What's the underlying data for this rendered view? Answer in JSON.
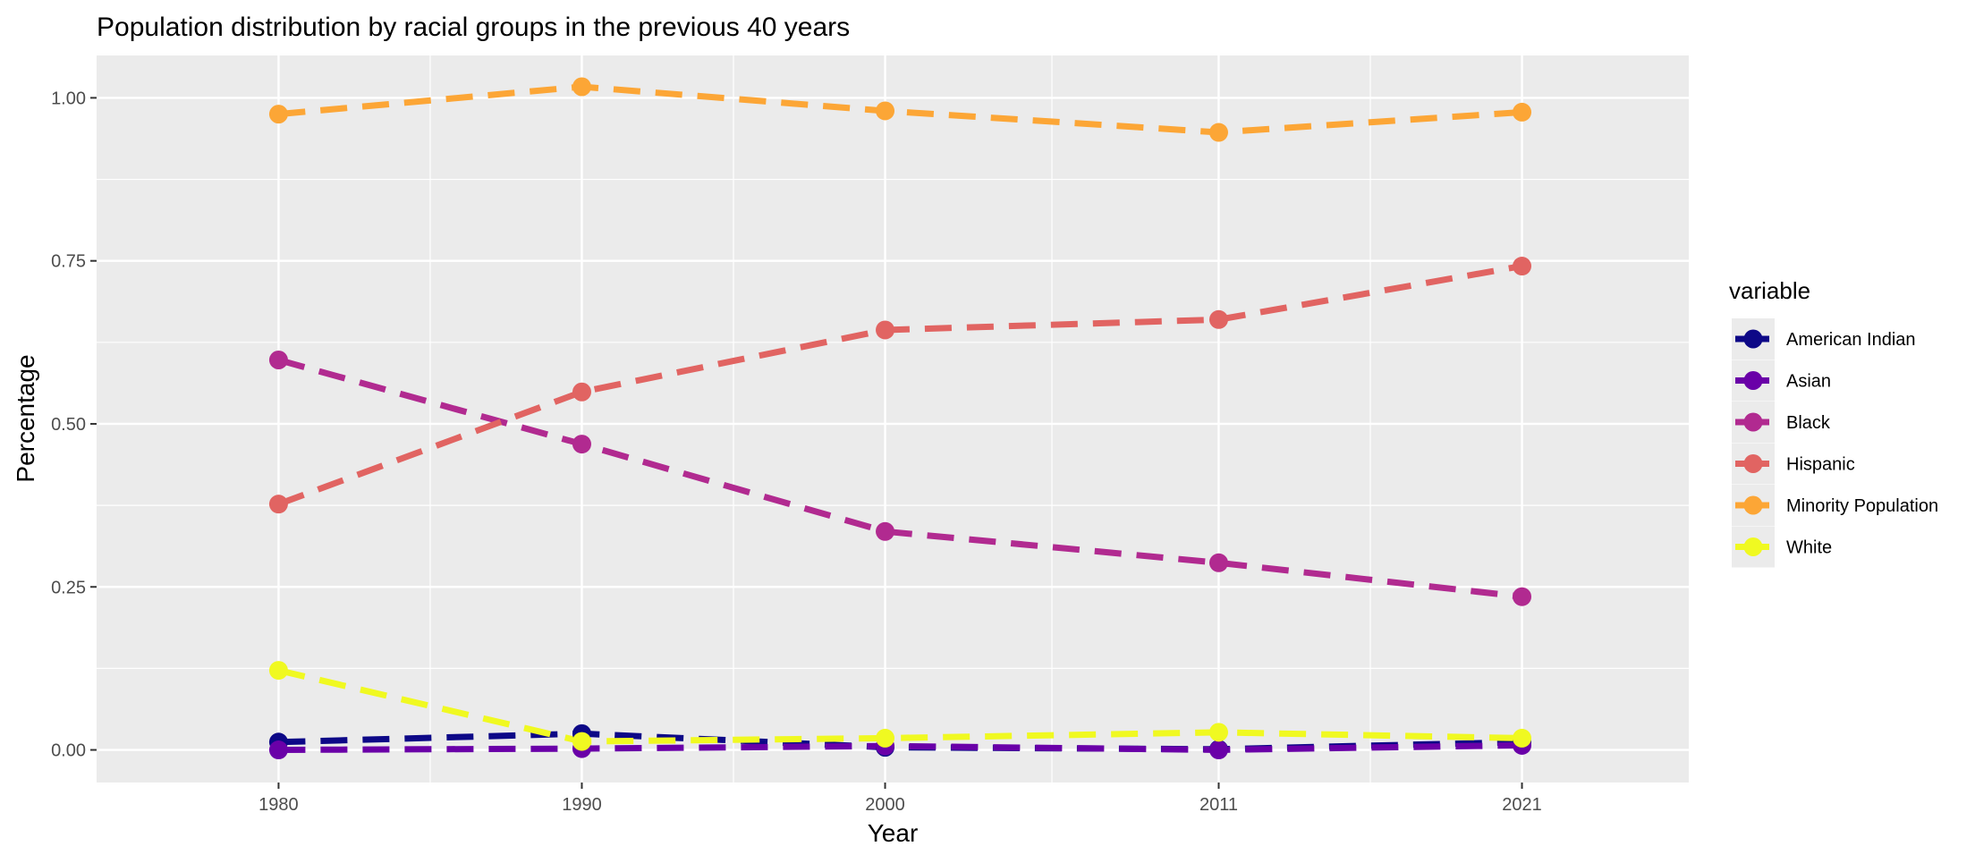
{
  "chart_data": {
    "type": "line",
    "title": "Population distribution by racial groups in the previous 40 years",
    "xlabel": "Year",
    "ylabel": "Percentage",
    "x": [
      "1980",
      "1990",
      "2000",
      "2011",
      "2021"
    ],
    "xlim": [
      1974,
      2026.5
    ],
    "ylim": [
      -0.05,
      1.065
    ],
    "yticks": [
      "0.00",
      "0.25",
      "0.50",
      "0.75",
      "1.00"
    ],
    "grid": true,
    "legend": {
      "title": "variable",
      "position": "right"
    },
    "series": [
      {
        "name": "American Indian",
        "color": "#0D0887",
        "values": [
          0.012,
          0.025,
          0.004,
          0.001,
          0.012
        ]
      },
      {
        "name": "Asian",
        "color": "#6A00A8",
        "values": [
          0.0,
          0.002,
          0.006,
          0.0,
          0.007
        ]
      },
      {
        "name": "Black",
        "color": "#B12A90",
        "values": [
          0.598,
          0.469,
          0.335,
          0.287,
          0.235
        ]
      },
      {
        "name": "Hispanic",
        "color": "#E16462",
        "values": [
          0.377,
          0.549,
          0.644,
          0.66,
          0.742
        ]
      },
      {
        "name": "Minority Population",
        "color": "#FCA636",
        "values": [
          0.975,
          1.017,
          0.98,
          0.947,
          0.978
        ]
      },
      {
        "name": "White",
        "color": "#F0F921",
        "values": [
          0.122,
          0.013,
          0.018,
          0.027,
          0.018
        ]
      }
    ]
  }
}
